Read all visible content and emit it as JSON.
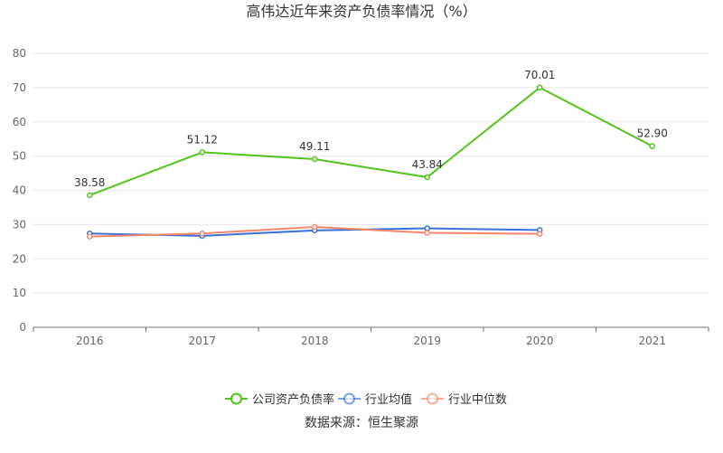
{
  "chart_data": {
    "type": "line",
    "title": "高伟达近年来资产负债率情况（%）",
    "categories": [
      "2016",
      "2017",
      "2018",
      "2019",
      "2020",
      "2021"
    ],
    "ylim": [
      0,
      80
    ],
    "yticks": [
      0,
      10,
      20,
      30,
      40,
      50,
      60,
      70,
      80
    ],
    "grid": true,
    "legend_position": "bottom",
    "series": [
      {
        "name": "公司资产负债率",
        "color": "#52c41a",
        "values": [
          38.58,
          51.12,
          49.11,
          43.84,
          70.01,
          52.9
        ],
        "labels": [
          "38.58",
          "51.12",
          "49.11",
          "43.84",
          "70.01",
          "52.90"
        ]
      },
      {
        "name": "行业均值",
        "color": "#3b6fd9",
        "values": [
          27.4,
          26.7,
          28.3,
          28.9,
          28.4,
          null
        ]
      },
      {
        "name": "行业中位数",
        "color": "#f4876a",
        "values": [
          26.5,
          27.4,
          29.3,
          27.6,
          27.3,
          null
        ]
      }
    ],
    "source": "数据来源：恒生聚源"
  }
}
